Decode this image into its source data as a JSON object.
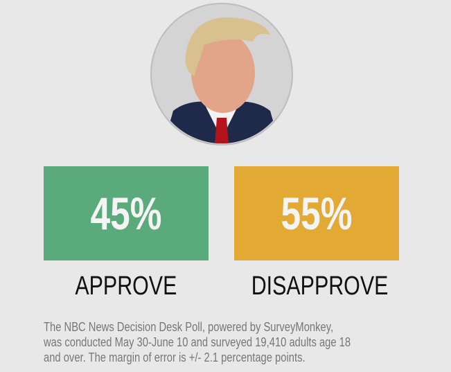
{
  "chart_data": {
    "type": "tiles",
    "categories": [
      "APPROVE",
      "DISAPPROVE"
    ],
    "values": [
      45,
      55
    ],
    "value_labels": [
      "45%",
      "55%"
    ],
    "colors": [
      "#5aaa7c",
      "#e3a935"
    ],
    "note_lines": [
      "The NBC News Decision Desk Poll, powered by SurveyMonkey,",
      "was conducted May 30-June 10 and surveyed 19,410 adults age 18",
      "and over. The margin of error is +/- 2.1 percentage points."
    ]
  }
}
